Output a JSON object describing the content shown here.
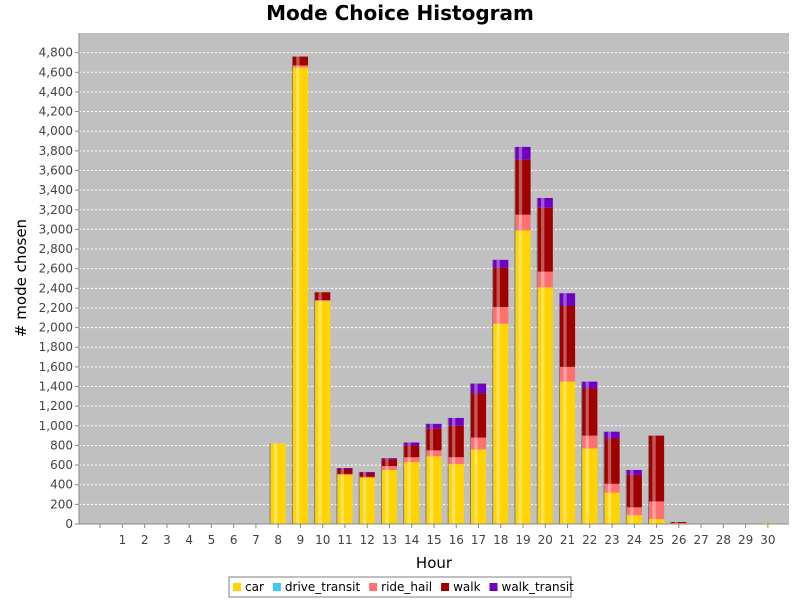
{
  "chart_data": {
    "type": "bar",
    "stacked": true,
    "title": "Mode Choice Histogram",
    "xlabel": "Hour",
    "ylabel": "# mode chosen",
    "ylim": [
      0,
      5000
    ],
    "yticks": [
      0,
      200,
      400,
      600,
      800,
      1000,
      1200,
      1400,
      1600,
      1800,
      2000,
      2200,
      2400,
      2600,
      2800,
      3000,
      3200,
      3400,
      3600,
      3800,
      4000,
      4200,
      4400,
      4600,
      4800
    ],
    "ytick_labels": [
      "0",
      "200",
      "400",
      "600",
      "800",
      "1,000",
      "1,200",
      "1,400",
      "1,600",
      "1,800",
      "2,000",
      "2,200",
      "2,400",
      "2,600",
      "2,800",
      "3,000",
      "3,200",
      "3,400",
      "3,600",
      "3,800",
      "4,000",
      "4,200",
      "4,400",
      "4,600",
      "4,800"
    ],
    "categories": [
      "",
      "1",
      "2",
      "3",
      "4",
      "5",
      "6",
      "7",
      "8",
      "9",
      "10",
      "11",
      "12",
      "13",
      "14",
      "15",
      "16",
      "17",
      "18",
      "19",
      "20",
      "21",
      "22",
      "23",
      "24",
      "25",
      "26",
      "27",
      "28",
      "29",
      "30"
    ],
    "grid": true,
    "background": "#c0c0c0",
    "legend_position": "bottom",
    "series": [
      {
        "name": "car",
        "color": "#ffd400",
        "values": [
          0,
          0,
          0,
          0,
          0,
          0,
          0,
          0,
          820,
          4650,
          2270,
          500,
          470,
          550,
          630,
          690,
          610,
          760,
          2040,
          2990,
          2410,
          1450,
          770,
          320,
          90,
          50,
          0,
          0,
          0,
          0,
          10
        ]
      },
      {
        "name": "drive_transit",
        "color": "#3ec7f0",
        "values": [
          0,
          0,
          0,
          0,
          0,
          0,
          0,
          0,
          0,
          0,
          0,
          0,
          0,
          0,
          0,
          0,
          0,
          0,
          0,
          0,
          0,
          0,
          0,
          0,
          0,
          0,
          0,
          0,
          0,
          0,
          0
        ]
      },
      {
        "name": "ride_hail",
        "color": "#ff7070",
        "values": [
          0,
          0,
          0,
          0,
          0,
          0,
          0,
          0,
          0,
          20,
          10,
          10,
          10,
          40,
          50,
          60,
          70,
          120,
          170,
          160,
          160,
          150,
          130,
          90,
          80,
          180,
          10,
          5,
          0,
          0,
          0
        ]
      },
      {
        "name": "walk",
        "color": "#a00000",
        "values": [
          0,
          0,
          0,
          0,
          0,
          0,
          0,
          0,
          0,
          90,
          80,
          50,
          40,
          70,
          120,
          220,
          320,
          450,
          400,
          560,
          650,
          620,
          480,
          460,
          330,
          670,
          10,
          0,
          0,
          0,
          0
        ]
      },
      {
        "name": "walk_transit",
        "color": "#7000c0",
        "values": [
          0,
          0,
          0,
          0,
          0,
          0,
          0,
          0,
          0,
          0,
          0,
          10,
          10,
          10,
          30,
          50,
          80,
          100,
          80,
          130,
          100,
          130,
          70,
          70,
          50,
          0,
          0,
          0,
          0,
          0,
          0
        ]
      }
    ]
  }
}
